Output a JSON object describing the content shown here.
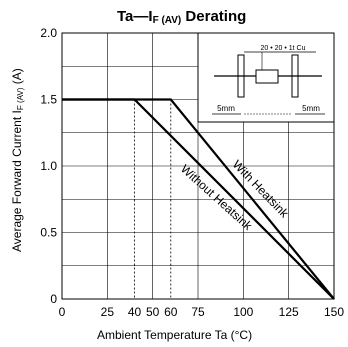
{
  "chart_data": {
    "type": "line",
    "title": {
      "main": "Ta—I",
      "subscript": "F (AV)",
      "suffix": " Derating"
    },
    "xlabel": "Ambient Temperature   Ta (°C)",
    "ylabel": {
      "main": "Average Forward Current   I",
      "subscript": "F (AV)",
      "suffix": " (A)"
    },
    "xlim": [
      0,
      150
    ],
    "ylim": [
      0,
      2.0
    ],
    "x_ticks": [
      0,
      25,
      40,
      50,
      60,
      75,
      100,
      125,
      150
    ],
    "y_ticks": [
      0,
      0.5,
      1.0,
      1.5,
      2.0
    ],
    "y_tick_labels": [
      "0",
      "0.5",
      "1.0",
      "1.5",
      "2.0"
    ],
    "grid_x": [
      0,
      25,
      50,
      75,
      100,
      125,
      150
    ],
    "grid_y": [
      0,
      0.25,
      0.5,
      0.75,
      1.0,
      1.25,
      1.5,
      1.75,
      2.0
    ],
    "grid": true,
    "reference_lines_x": [
      40,
      60
    ],
    "series": [
      {
        "name": "With Heatsink",
        "points": [
          [
            0,
            1.5
          ],
          [
            60,
            1.5
          ],
          [
            150,
            0
          ]
        ]
      },
      {
        "name": "Without Heatsink",
        "points": [
          [
            0,
            1.5
          ],
          [
            40,
            1.5
          ],
          [
            150,
            0
          ]
        ]
      }
    ],
    "annotations": {
      "with_heatsink": "With Heatsink",
      "without_heatsink": "Without Heatsink"
    },
    "inset": {
      "label": "20 • 20 • 1t Cu",
      "left_dim": "5mm",
      "right_dim": "5mm"
    }
  }
}
